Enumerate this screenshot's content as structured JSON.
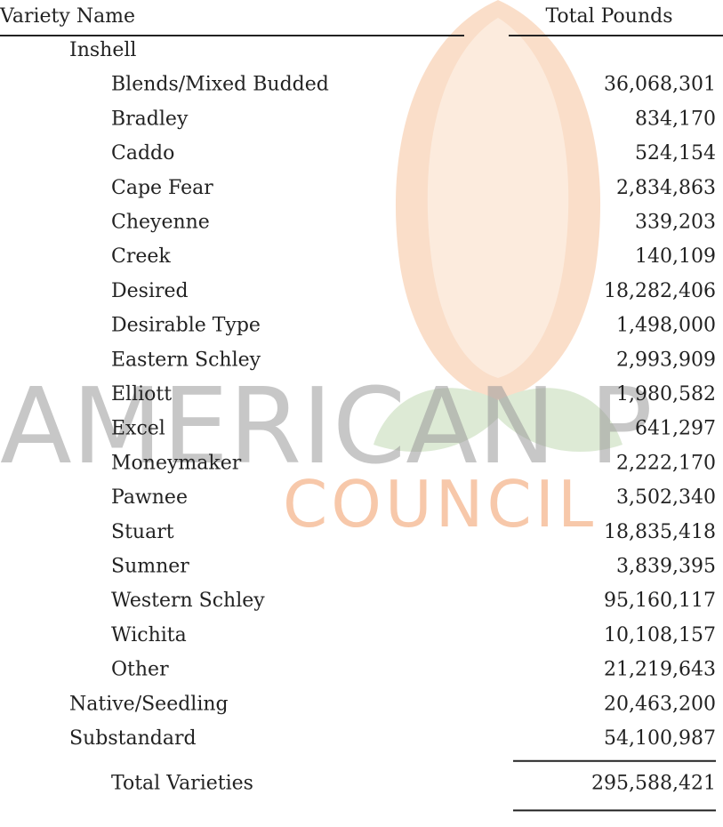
{
  "watermark": {
    "line1": "AMERICAN P",
    "line2": "COUNCIL"
  },
  "table": {
    "header": [
      "Variety Name",
      "Total Pounds"
    ],
    "inshell": {
      "label": "Inshell",
      "rows": [
        [
          "Blends/Mixed Budded",
          "36,068,301"
        ],
        [
          "Bradley",
          "834,170"
        ],
        [
          "Caddo",
          "524,154"
        ],
        [
          "Cape Fear",
          "2,834,863"
        ],
        [
          "Cheyenne",
          "339,203"
        ],
        [
          "Creek",
          "140,109"
        ],
        [
          "Desired",
          "18,282,406"
        ],
        [
          "Desirable Type",
          "1,498,000"
        ],
        [
          "Eastern Schley",
          "2,993,909"
        ],
        [
          "Elliott",
          "1,980,582"
        ],
        [
          "Excel",
          "641,297"
        ],
        [
          "Moneymaker",
          "2,222,170"
        ],
        [
          "Pawnee",
          "3,502,340"
        ],
        [
          "Stuart",
          "18,835,418"
        ],
        [
          "Sumner",
          "3,839,395"
        ],
        [
          "Western Schley",
          "95,160,117"
        ],
        [
          "Wichita",
          "10,108,157"
        ],
        [
          "Other",
          "21,219,643"
        ]
      ]
    },
    "groups": [
      [
        "Native/Seedling",
        "20,463,200"
      ],
      [
        "Substandard",
        "54,100,987"
      ]
    ],
    "total": [
      "Total Varieties",
      "295,588,421"
    ]
  }
}
